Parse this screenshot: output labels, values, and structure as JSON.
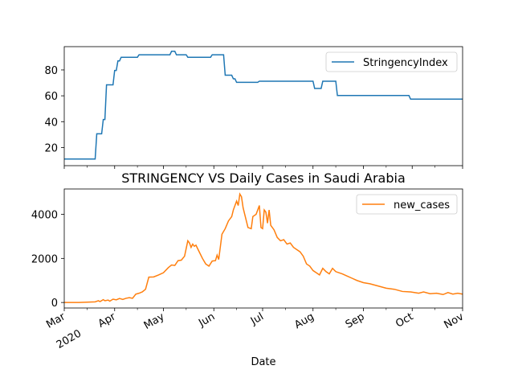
{
  "colors": {
    "stringency": "#1f77b4",
    "new_cases": "#ff7f0e"
  },
  "chart_data": [
    {
      "type": "line",
      "title": "",
      "xlabel": "",
      "ylabel": "",
      "legend": "upper right",
      "ylim": [
        6,
        98
      ],
      "yticks": [
        20,
        40,
        60,
        80
      ],
      "xlim": [
        "2020-03-01",
        "2020-11-01"
      ],
      "series": [
        {
          "name": "StringencyIndex",
          "color": "#1f77b4",
          "points": [
            [
              "2020-03-01",
              11.1
            ],
            [
              "2020-03-20",
              11.1
            ],
            [
              "2020-03-21",
              30.6
            ],
            [
              "2020-03-24",
              30.6
            ],
            [
              "2020-03-25",
              41.7
            ],
            [
              "2020-03-26",
              41.7
            ],
            [
              "2020-03-27",
              68.5
            ],
            [
              "2020-03-31",
              68.5
            ],
            [
              "2020-04-01",
              79.6
            ],
            [
              "2020-04-02",
              79.6
            ],
            [
              "2020-04-03",
              87.0
            ],
            [
              "2020-04-04",
              87.0
            ],
            [
              "2020-04-05",
              89.8
            ],
            [
              "2020-04-15",
              89.8
            ],
            [
              "2020-04-16",
              91.7
            ],
            [
              "2020-05-05",
              91.7
            ],
            [
              "2020-05-06",
              94.4
            ],
            [
              "2020-05-08",
              94.4
            ],
            [
              "2020-05-09",
              91.7
            ],
            [
              "2020-05-15",
              91.7
            ],
            [
              "2020-05-16",
              89.8
            ],
            [
              "2020-05-30",
              89.8
            ],
            [
              "2020-05-31",
              91.7
            ],
            [
              "2020-06-07",
              91.7
            ],
            [
              "2020-06-08",
              75.9
            ],
            [
              "2020-06-12",
              75.9
            ],
            [
              "2020-06-13",
              73.1
            ],
            [
              "2020-06-14",
              73.1
            ],
            [
              "2020-06-15",
              70.4
            ],
            [
              "2020-06-28",
              70.4
            ],
            [
              "2020-06-29",
              71.3
            ],
            [
              "2020-08-01",
              71.3
            ],
            [
              "2020-08-02",
              65.7
            ],
            [
              "2020-08-06",
              65.7
            ],
            [
              "2020-08-07",
              71.3
            ],
            [
              "2020-08-15",
              71.3
            ],
            [
              "2020-08-16",
              60.2
            ],
            [
              "2020-09-29",
              60.2
            ],
            [
              "2020-09-30",
              57.4
            ],
            [
              "2020-11-01",
              57.4
            ]
          ]
        }
      ]
    },
    {
      "type": "line",
      "title": "STRINGENCY VS Daily Cases in Saudi Arabia",
      "xlabel": "Date",
      "ylabel": "",
      "legend": "upper right",
      "ylim": [
        -250,
        5150
      ],
      "yticks": [
        0,
        2000,
        4000
      ],
      "xlim": [
        "2020-03-01",
        "2020-11-01"
      ],
      "xtick_labels": [
        {
          "date": "2020-03-01",
          "label": "Mar",
          "sublabel": "2020"
        },
        {
          "date": "2020-04-01",
          "label": "Apr"
        },
        {
          "date": "2020-05-01",
          "label": "May"
        },
        {
          "date": "2020-06-01",
          "label": "Jun"
        },
        {
          "date": "2020-07-01",
          "label": "Jul"
        },
        {
          "date": "2020-08-01",
          "label": "Aug"
        },
        {
          "date": "2020-09-01",
          "label": "Sep"
        },
        {
          "date": "2020-10-01",
          "label": "Oct"
        },
        {
          "date": "2020-11-01",
          "label": "Nov"
        }
      ],
      "series": [
        {
          "name": "new_cases",
          "color": "#ff7f0e",
          "points": [
            [
              "2020-03-01",
              0
            ],
            [
              "2020-03-10",
              2
            ],
            [
              "2020-03-15",
              15
            ],
            [
              "2020-03-20",
              30
            ],
            [
              "2020-03-22",
              80
            ],
            [
              "2020-03-23",
              40
            ],
            [
              "2020-03-25",
              130
            ],
            [
              "2020-03-26",
              80
            ],
            [
              "2020-03-28",
              110
            ],
            [
              "2020-03-29",
              60
            ],
            [
              "2020-03-31",
              150
            ],
            [
              "2020-04-02",
              120
            ],
            [
              "2020-04-04",
              180
            ],
            [
              "2020-04-06",
              140
            ],
            [
              "2020-04-08",
              190
            ],
            [
              "2020-04-10",
              220
            ],
            [
              "2020-04-12",
              190
            ],
            [
              "2020-04-14",
              380
            ],
            [
              "2020-04-16",
              420
            ],
            [
              "2020-04-18",
              480
            ],
            [
              "2020-04-20",
              600
            ],
            [
              "2020-04-22",
              1150
            ],
            [
              "2020-04-25",
              1160
            ],
            [
              "2020-04-28",
              1250
            ],
            [
              "2020-05-01",
              1350
            ],
            [
              "2020-05-04",
              1580
            ],
            [
              "2020-05-06",
              1700
            ],
            [
              "2020-05-08",
              1680
            ],
            [
              "2020-05-10",
              1900
            ],
            [
              "2020-05-12",
              1920
            ],
            [
              "2020-05-14",
              2100
            ],
            [
              "2020-05-16",
              2800
            ],
            [
              "2020-05-17",
              2700
            ],
            [
              "2020-05-18",
              2500
            ],
            [
              "2020-05-19",
              2650
            ],
            [
              "2020-05-20",
              2550
            ],
            [
              "2020-05-21",
              2600
            ],
            [
              "2020-05-23",
              2300
            ],
            [
              "2020-05-25",
              2000
            ],
            [
              "2020-05-27",
              1750
            ],
            [
              "2020-05-29",
              1650
            ],
            [
              "2020-05-31",
              1880
            ],
            [
              "2020-06-02",
              1900
            ],
            [
              "2020-06-03",
              2150
            ],
            [
              "2020-06-04",
              1950
            ],
            [
              "2020-06-06",
              3100
            ],
            [
              "2020-06-08",
              3350
            ],
            [
              "2020-06-10",
              3700
            ],
            [
              "2020-06-12",
              3900
            ],
            [
              "2020-06-13",
              4200
            ],
            [
              "2020-06-15",
              4600
            ],
            [
              "2020-06-16",
              4400
            ],
            [
              "2020-06-17",
              4920
            ],
            [
              "2020-06-18",
              4800
            ],
            [
              "2020-06-19",
              4300
            ],
            [
              "2020-06-20",
              4000
            ],
            [
              "2020-06-21",
              3700
            ],
            [
              "2020-06-22",
              3400
            ],
            [
              "2020-06-24",
              3350
            ],
            [
              "2020-06-25",
              3900
            ],
            [
              "2020-06-27",
              4000
            ],
            [
              "2020-06-29",
              4400
            ],
            [
              "2020-06-30",
              3400
            ],
            [
              "2020-07-01",
              3350
            ],
            [
              "2020-07-02",
              4200
            ],
            [
              "2020-07-03",
              4100
            ],
            [
              "2020-07-04",
              3600
            ],
            [
              "2020-07-05",
              4200
            ],
            [
              "2020-07-06",
              3500
            ],
            [
              "2020-07-08",
              3300
            ],
            [
              "2020-07-10",
              2950
            ],
            [
              "2020-07-12",
              2800
            ],
            [
              "2020-07-14",
              2850
            ],
            [
              "2020-07-16",
              2650
            ],
            [
              "2020-07-18",
              2700
            ],
            [
              "2020-07-20",
              2500
            ],
            [
              "2020-07-22",
              2400
            ],
            [
              "2020-07-24",
              2300
            ],
            [
              "2020-07-26",
              2100
            ],
            [
              "2020-07-28",
              1750
            ],
            [
              "2020-07-30",
              1650
            ],
            [
              "2020-08-01",
              1450
            ],
            [
              "2020-08-03",
              1350
            ],
            [
              "2020-08-05",
              1250
            ],
            [
              "2020-08-07",
              1550
            ],
            [
              "2020-08-09",
              1400
            ],
            [
              "2020-08-11",
              1300
            ],
            [
              "2020-08-13",
              1550
            ],
            [
              "2020-08-15",
              1400
            ],
            [
              "2020-08-17",
              1350
            ],
            [
              "2020-08-19",
              1300
            ],
            [
              "2020-08-22",
              1200
            ],
            [
              "2020-08-25",
              1100
            ],
            [
              "2020-08-28",
              1000
            ],
            [
              "2020-09-01",
              900
            ],
            [
              "2020-09-05",
              850
            ],
            [
              "2020-09-10",
              750
            ],
            [
              "2020-09-15",
              650
            ],
            [
              "2020-09-20",
              600
            ],
            [
              "2020-09-25",
              500
            ],
            [
              "2020-09-30",
              480
            ],
            [
              "2020-10-05",
              420
            ],
            [
              "2020-10-08",
              480
            ],
            [
              "2020-10-12",
              400
            ],
            [
              "2020-10-16",
              420
            ],
            [
              "2020-10-20",
              360
            ],
            [
              "2020-10-23",
              450
            ],
            [
              "2020-10-26",
              380
            ],
            [
              "2020-10-29",
              420
            ],
            [
              "2020-11-01",
              380
            ]
          ]
        }
      ]
    }
  ]
}
